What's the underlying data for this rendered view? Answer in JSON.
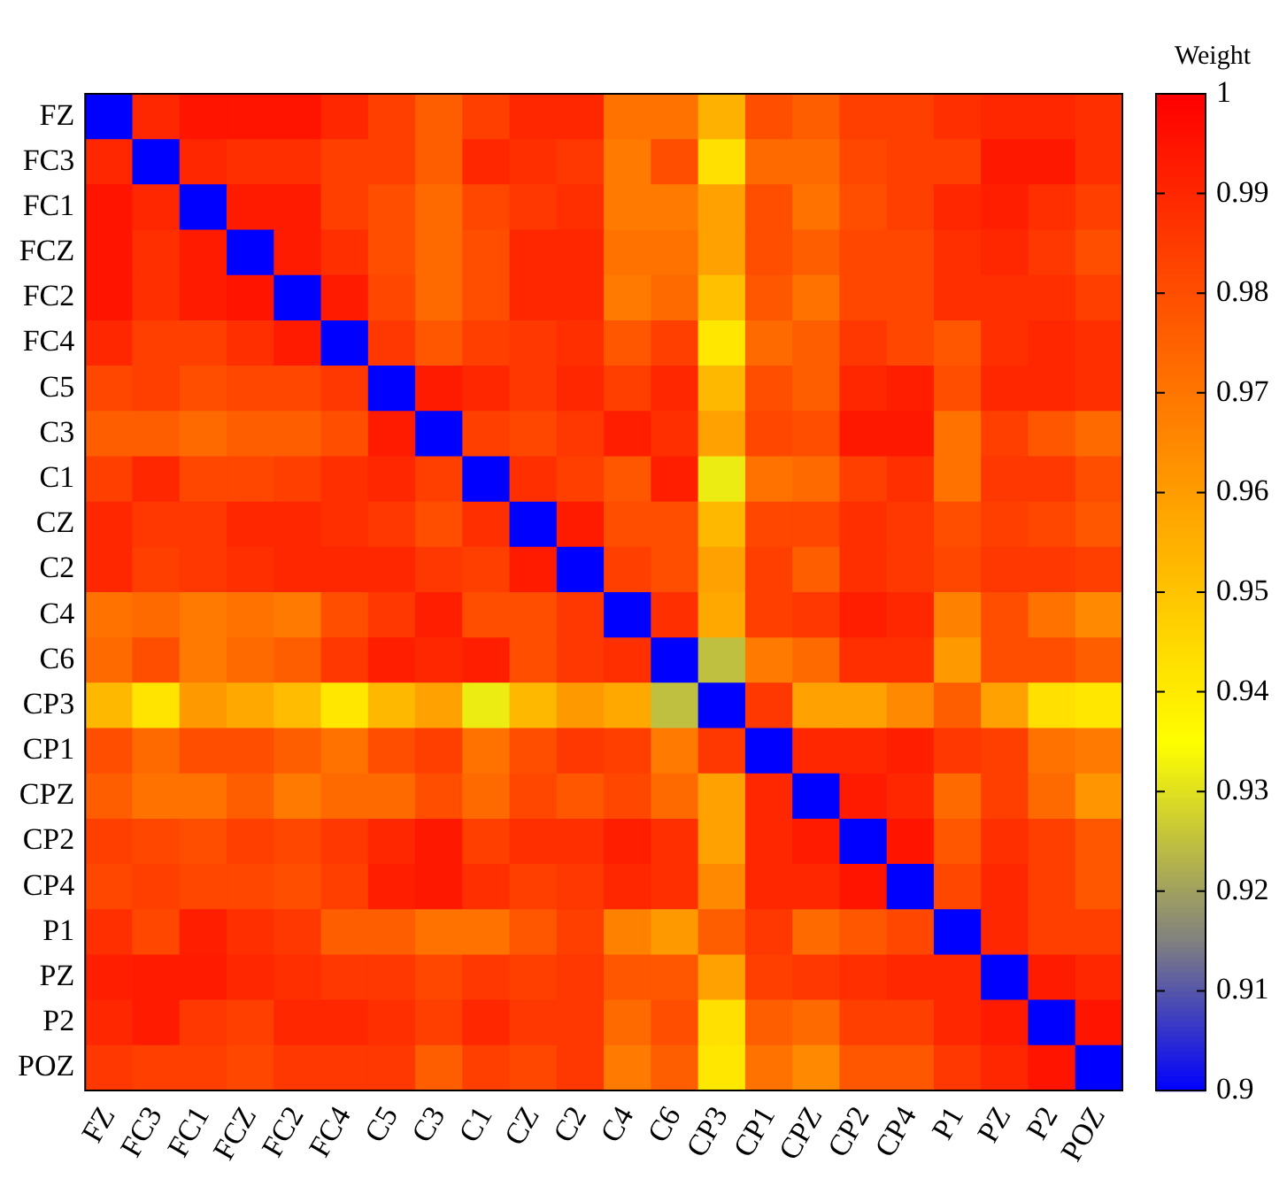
{
  "chart_data": {
    "type": "heatmap",
    "clabel": "Weight",
    "categories": [
      "FZ",
      "FC3",
      "FC1",
      "FCZ",
      "FC2",
      "FC4",
      "C5",
      "C3",
      "C1",
      "CZ",
      "C2",
      "C4",
      "C6",
      "CP3",
      "CP1",
      "CPZ",
      "CP2",
      "CP4",
      "P1",
      "PZ",
      "P2",
      "POZ"
    ],
    "y_categories": [
      "FZ",
      "FC3",
      "FC1",
      "FCZ",
      "FC2",
      "FC4",
      "C5",
      "C3",
      "C1",
      "CZ",
      "C2",
      "C4",
      "C6",
      "CP3",
      "CP1",
      "CPZ",
      "CP2",
      "CP4",
      "P1",
      "PZ",
      "P2",
      "POZ"
    ],
    "cells": [
      [
        0.9,
        0.99,
        0.995,
        0.995,
        0.995,
        0.99,
        0.984,
        0.976,
        0.984,
        0.99,
        0.99,
        0.971,
        0.971,
        0.955,
        0.98,
        0.976,
        0.984,
        0.984,
        0.988,
        0.99,
        0.99,
        0.988
      ],
      [
        0.99,
        0.9,
        0.99,
        0.988,
        0.988,
        0.984,
        0.984,
        0.976,
        0.99,
        0.988,
        0.986,
        0.969,
        0.98,
        0.943,
        0.973,
        0.973,
        0.982,
        0.984,
        0.984,
        0.994,
        0.994,
        0.988
      ],
      [
        0.995,
        0.99,
        0.9,
        0.993,
        0.993,
        0.984,
        0.98,
        0.973,
        0.982,
        0.986,
        0.988,
        0.969,
        0.969,
        0.959,
        0.98,
        0.971,
        0.98,
        0.984,
        0.99,
        0.992,
        0.988,
        0.984
      ],
      [
        0.995,
        0.988,
        0.993,
        0.9,
        0.993,
        0.988,
        0.98,
        0.973,
        0.98,
        0.99,
        0.99,
        0.971,
        0.971,
        0.959,
        0.98,
        0.976,
        0.982,
        0.982,
        0.988,
        0.99,
        0.986,
        0.98
      ],
      [
        0.995,
        0.988,
        0.993,
        0.995,
        0.9,
        0.993,
        0.982,
        0.973,
        0.98,
        0.99,
        0.99,
        0.969,
        0.973,
        0.951,
        0.978,
        0.971,
        0.982,
        0.982,
        0.988,
        0.988,
        0.988,
        0.984
      ],
      [
        0.99,
        0.984,
        0.984,
        0.988,
        0.993,
        0.9,
        0.986,
        0.978,
        0.984,
        0.986,
        0.988,
        0.978,
        0.984,
        0.941,
        0.973,
        0.976,
        0.986,
        0.982,
        0.978,
        0.988,
        0.99,
        0.988
      ],
      [
        0.982,
        0.984,
        0.98,
        0.982,
        0.982,
        0.986,
        0.9,
        0.993,
        0.99,
        0.986,
        0.99,
        0.984,
        0.99,
        0.953,
        0.98,
        0.976,
        0.99,
        0.992,
        0.98,
        0.99,
        0.99,
        0.988
      ],
      [
        0.976,
        0.976,
        0.973,
        0.976,
        0.976,
        0.98,
        0.993,
        0.9,
        0.984,
        0.982,
        0.986,
        0.992,
        0.988,
        0.959,
        0.982,
        0.98,
        0.994,
        0.994,
        0.971,
        0.984,
        0.978,
        0.973
      ],
      [
        0.984,
        0.99,
        0.982,
        0.982,
        0.984,
        0.988,
        0.99,
        0.984,
        0.9,
        0.988,
        0.984,
        0.978,
        0.992,
        0.932,
        0.971,
        0.973,
        0.984,
        0.988,
        0.971,
        0.986,
        0.986,
        0.98
      ],
      [
        0.99,
        0.986,
        0.986,
        0.99,
        0.99,
        0.988,
        0.986,
        0.98,
        0.988,
        0.9,
        0.993,
        0.98,
        0.98,
        0.953,
        0.982,
        0.982,
        0.988,
        0.986,
        0.98,
        0.984,
        0.982,
        0.978
      ],
      [
        0.99,
        0.984,
        0.986,
        0.988,
        0.99,
        0.99,
        0.99,
        0.986,
        0.984,
        0.993,
        0.9,
        0.984,
        0.98,
        0.959,
        0.984,
        0.976,
        0.988,
        0.986,
        0.982,
        0.986,
        0.986,
        0.984
      ],
      [
        0.971,
        0.973,
        0.969,
        0.971,
        0.969,
        0.98,
        0.986,
        0.992,
        0.98,
        0.98,
        0.986,
        0.9,
        0.988,
        0.957,
        0.984,
        0.986,
        0.992,
        0.99,
        0.967,
        0.98,
        0.971,
        0.965
      ],
      [
        0.973,
        0.98,
        0.969,
        0.973,
        0.976,
        0.986,
        0.992,
        0.99,
        0.992,
        0.98,
        0.986,
        0.988,
        0.9,
        0.925,
        0.969,
        0.973,
        0.988,
        0.988,
        0.961,
        0.98,
        0.98,
        0.976
      ],
      [
        0.953,
        0.942,
        0.961,
        0.957,
        0.952,
        0.941,
        0.953,
        0.959,
        0.932,
        0.953,
        0.961,
        0.957,
        0.925,
        0.9,
        0.986,
        0.959,
        0.959,
        0.965,
        0.976,
        0.959,
        0.943,
        0.941
      ],
      [
        0.98,
        0.973,
        0.98,
        0.98,
        0.976,
        0.971,
        0.98,
        0.984,
        0.971,
        0.98,
        0.986,
        0.984,
        0.969,
        0.986,
        0.9,
        0.99,
        0.99,
        0.992,
        0.986,
        0.984,
        0.971,
        0.969
      ],
      [
        0.976,
        0.971,
        0.971,
        0.976,
        0.969,
        0.973,
        0.973,
        0.98,
        0.973,
        0.982,
        0.978,
        0.982,
        0.973,
        0.959,
        0.99,
        0.9,
        0.993,
        0.99,
        0.973,
        0.984,
        0.973,
        0.962
      ],
      [
        0.984,
        0.982,
        0.98,
        0.984,
        0.982,
        0.986,
        0.99,
        0.994,
        0.984,
        0.988,
        0.988,
        0.992,
        0.988,
        0.959,
        0.99,
        0.993,
        0.9,
        0.995,
        0.978,
        0.988,
        0.984,
        0.978
      ],
      [
        0.982,
        0.984,
        0.982,
        0.982,
        0.98,
        0.984,
        0.992,
        0.994,
        0.988,
        0.984,
        0.986,
        0.99,
        0.988,
        0.965,
        0.99,
        0.99,
        0.995,
        0.9,
        0.982,
        0.99,
        0.984,
        0.978
      ],
      [
        0.988,
        0.982,
        0.992,
        0.988,
        0.986,
        0.976,
        0.976,
        0.971,
        0.971,
        0.978,
        0.984,
        0.967,
        0.961,
        0.976,
        0.986,
        0.973,
        0.978,
        0.982,
        0.9,
        0.99,
        0.984,
        0.984
      ],
      [
        0.992,
        0.993,
        0.993,
        0.99,
        0.988,
        0.986,
        0.986,
        0.982,
        0.986,
        0.984,
        0.986,
        0.978,
        0.978,
        0.959,
        0.984,
        0.986,
        0.988,
        0.99,
        0.99,
        0.9,
        0.993,
        0.99
      ],
      [
        0.99,
        0.993,
        0.986,
        0.984,
        0.99,
        0.99,
        0.988,
        0.984,
        0.99,
        0.986,
        0.986,
        0.973,
        0.98,
        0.943,
        0.976,
        0.973,
        0.984,
        0.984,
        0.99,
        0.993,
        0.9,
        0.995
      ],
      [
        0.986,
        0.984,
        0.984,
        0.982,
        0.986,
        0.986,
        0.986,
        0.976,
        0.984,
        0.982,
        0.986,
        0.969,
        0.976,
        0.941,
        0.971,
        0.965,
        0.978,
        0.978,
        0.986,
        0.99,
        0.995,
        0.9
      ]
    ],
    "clim": [
      0.9,
      1
    ],
    "cticks": [
      0.9,
      0.91,
      0.92,
      0.93,
      0.94,
      0.95,
      0.96,
      0.97,
      0.98,
      0.99,
      1
    ]
  }
}
